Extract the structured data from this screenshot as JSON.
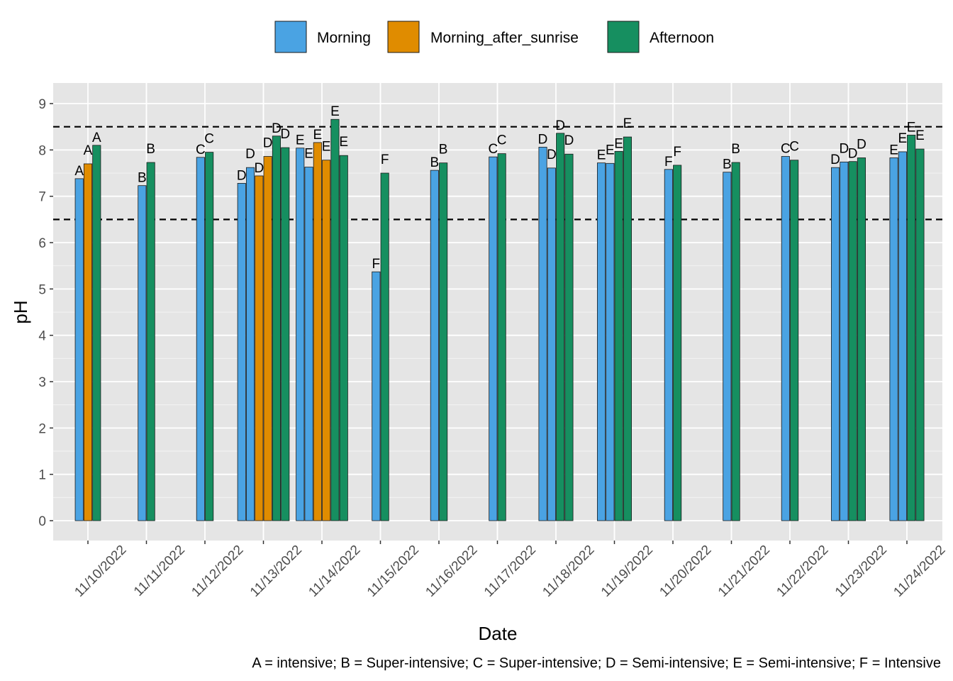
{
  "chart_data": {
    "type": "bar",
    "xlabel": "Date",
    "ylabel": "pH",
    "ylim": [
      -0.45,
      9.5
    ],
    "yticks": [
      0,
      1,
      2,
      3,
      4,
      5,
      6,
      7,
      8,
      9
    ],
    "reference_lines": [
      6.5,
      8.5
    ],
    "legend": {
      "position": "top",
      "entries": [
        {
          "name": "Morning",
          "color": "#4aa3e3"
        },
        {
          "name": "Morning_after_sunrise",
          "color": "#e08c00"
        },
        {
          "name": "Afternoon",
          "color": "#168f60"
        }
      ]
    },
    "caption": "A = intensive;  B = Super-intensive;  C = Super-intensive;  D = Semi-intensive;  E = Semi-intensive;  F = Intensive",
    "dates": [
      "11/10/2022",
      "11/11/2022",
      "11/12/2022",
      "11/13/2022",
      "11/14/2022",
      "11/15/2022",
      "11/16/2022",
      "11/17/2022",
      "11/18/2022",
      "11/19/2022",
      "11/20/2022",
      "11/21/2022",
      "11/22/2022",
      "11/23/2022",
      "11/24/2022"
    ],
    "groups": [
      {
        "date": "11/10/2022",
        "bars": [
          {
            "series": "Morning",
            "label": "A",
            "value": 7.38
          },
          {
            "series": "Morning_after_sunrise",
            "label": "A",
            "value": 7.7
          },
          {
            "series": "Afternoon",
            "label": "A",
            "value": 8.1
          }
        ]
      },
      {
        "date": "11/11/2022",
        "bars": [
          {
            "series": "Morning",
            "label": "B",
            "value": 7.23
          },
          {
            "series": "Afternoon",
            "label": "B",
            "value": 7.73
          }
        ]
      },
      {
        "date": "11/12/2022",
        "bars": [
          {
            "series": "Morning",
            "label": "C",
            "value": 7.84
          },
          {
            "series": "Afternoon",
            "label": "C",
            "value": 7.95
          }
        ]
      },
      {
        "date": "11/13/2022",
        "bars": [
          {
            "series": "Morning",
            "label": "D",
            "value": 7.28
          },
          {
            "series": "Morning",
            "label": "D",
            "value": 7.62
          },
          {
            "series": "Morning_after_sunrise",
            "label": "D",
            "value": 7.44
          },
          {
            "series": "Morning_after_sunrise",
            "label": "D",
            "value": 7.86
          },
          {
            "series": "Afternoon",
            "label": "D",
            "value": 8.3
          },
          {
            "series": "Afternoon",
            "label": "D",
            "value": 8.05
          }
        ]
      },
      {
        "date": "11/14/2022",
        "bars": [
          {
            "series": "Morning",
            "label": "E",
            "value": 8.04
          },
          {
            "series": "Morning",
            "label": "E",
            "value": 7.63
          },
          {
            "series": "Morning_after_sunrise",
            "label": "E",
            "value": 8.16
          },
          {
            "series": "Morning_after_sunrise",
            "label": "E",
            "value": 7.78
          },
          {
            "series": "Afternoon",
            "label": "E",
            "value": 8.66
          },
          {
            "series": "Afternoon",
            "label": "E",
            "value": 7.88
          }
        ]
      },
      {
        "date": "11/15/2022",
        "bars": [
          {
            "series": "Morning",
            "label": "F",
            "value": 5.37
          },
          {
            "series": "Afternoon",
            "label": "F",
            "value": 7.5
          }
        ]
      },
      {
        "date": "11/16/2022",
        "bars": [
          {
            "series": "Morning",
            "label": "B",
            "value": 7.56
          },
          {
            "series": "Afternoon",
            "label": "B",
            "value": 7.72
          }
        ]
      },
      {
        "date": "11/17/2022",
        "bars": [
          {
            "series": "Morning",
            "label": "C",
            "value": 7.85
          },
          {
            "series": "Afternoon",
            "label": "C",
            "value": 7.92
          }
        ]
      },
      {
        "date": "11/18/2022",
        "bars": [
          {
            "series": "Morning",
            "label": "D",
            "value": 8.06
          },
          {
            "series": "Morning",
            "label": "D",
            "value": 7.61
          },
          {
            "series": "Afternoon",
            "label": "D",
            "value": 8.36
          },
          {
            "series": "Afternoon",
            "label": "D",
            "value": 7.91
          }
        ]
      },
      {
        "date": "11/19/2022",
        "bars": [
          {
            "series": "Morning",
            "label": "E",
            "value": 7.72
          },
          {
            "series": "Morning",
            "label": "E",
            "value": 7.71
          },
          {
            "series": "Afternoon",
            "label": "E",
            "value": 7.97
          },
          {
            "series": "Afternoon",
            "label": "E",
            "value": 8.28
          }
        ]
      },
      {
        "date": "11/20/2022",
        "bars": [
          {
            "series": "Morning",
            "label": "F",
            "value": 7.58
          },
          {
            "series": "Afternoon",
            "label": "F",
            "value": 7.67
          }
        ]
      },
      {
        "date": "11/21/2022",
        "bars": [
          {
            "series": "Morning",
            "label": "B",
            "value": 7.52
          },
          {
            "series": "Afternoon",
            "label": "B",
            "value": 7.73
          }
        ]
      },
      {
        "date": "11/22/2022",
        "bars": [
          {
            "series": "Morning",
            "label": "C",
            "value": 7.86
          },
          {
            "series": "Afternoon",
            "label": "C",
            "value": 7.78
          }
        ]
      },
      {
        "date": "11/23/2022",
        "bars": [
          {
            "series": "Morning",
            "label": "D",
            "value": 7.62
          },
          {
            "series": "Morning",
            "label": "D",
            "value": 7.74
          },
          {
            "series": "Afternoon",
            "label": "D",
            "value": 7.75
          },
          {
            "series": "Afternoon",
            "label": "D",
            "value": 7.83
          }
        ]
      },
      {
        "date": "11/24/2022",
        "bars": [
          {
            "series": "Morning",
            "label": "E",
            "value": 7.83
          },
          {
            "series": "Morning",
            "label": "E",
            "value": 7.96
          },
          {
            "series": "Afternoon",
            "label": "E",
            "value": 8.32
          },
          {
            "series": "Afternoon",
            "label": "E",
            "value": 8.02
          }
        ]
      }
    ]
  }
}
